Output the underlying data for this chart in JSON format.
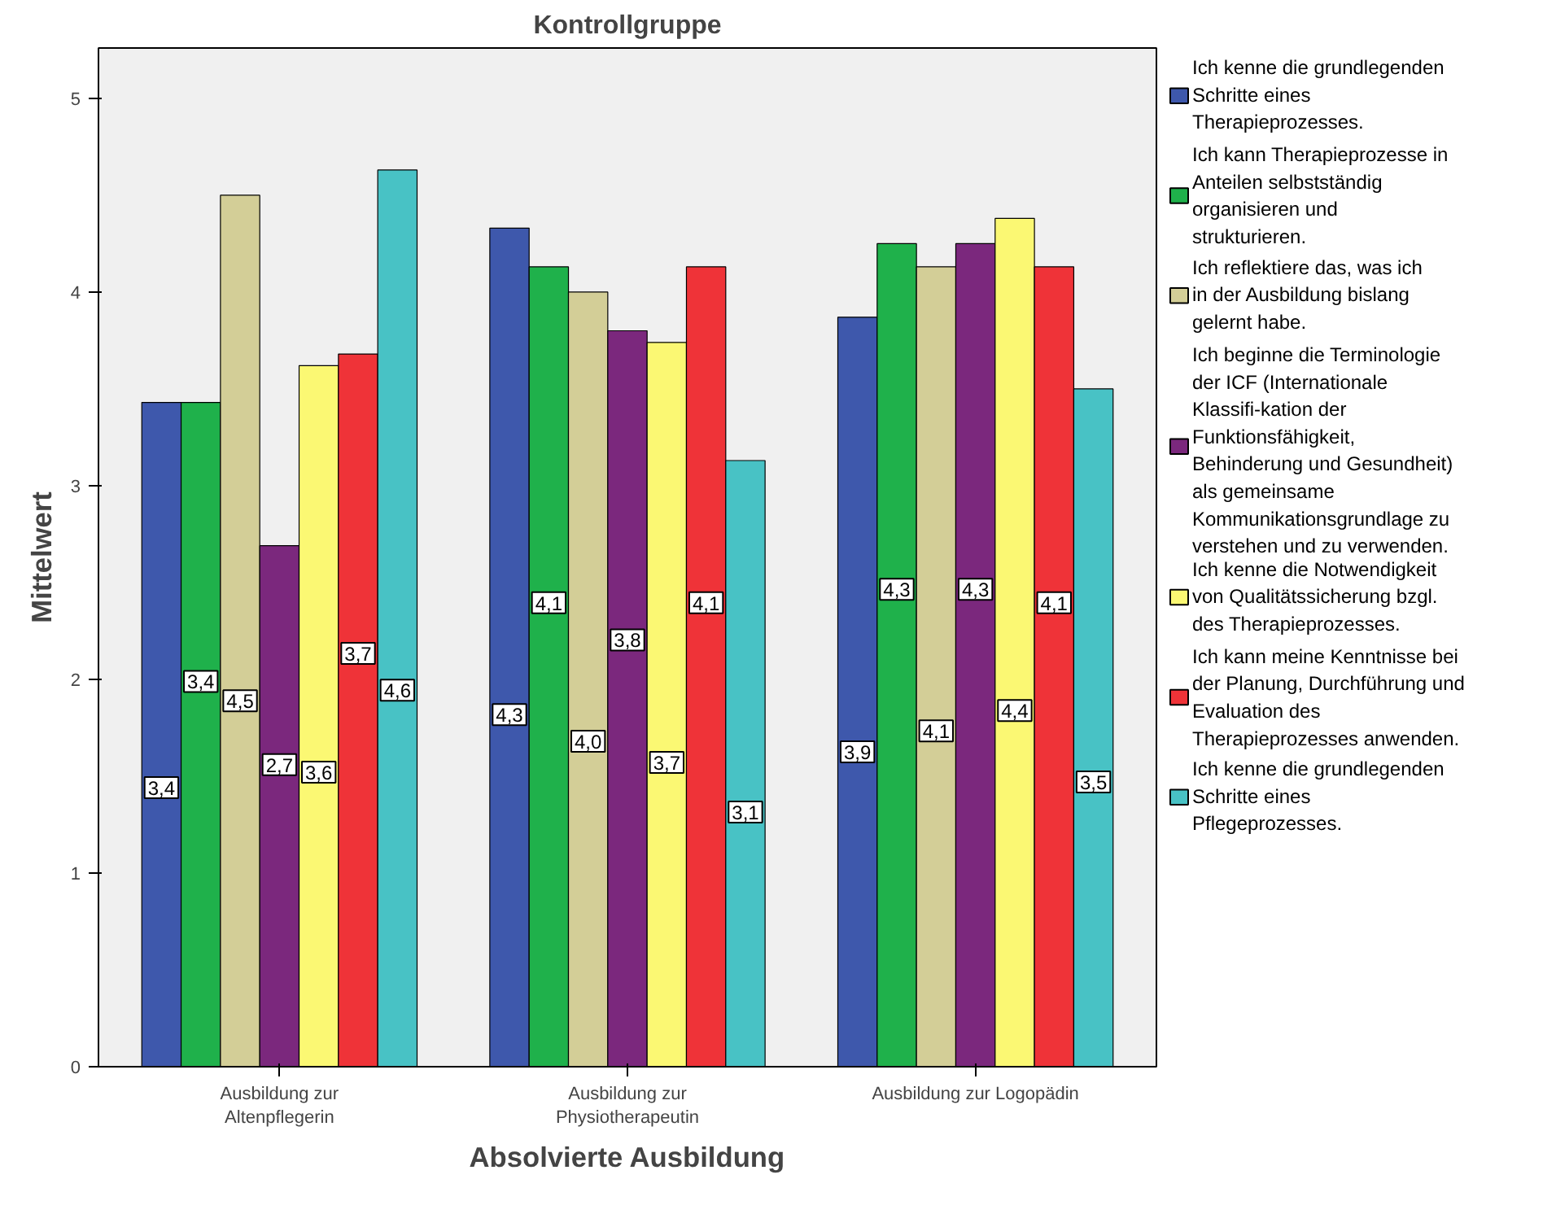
{
  "chart_data": {
    "type": "bar",
    "title": "Kontrollgruppe",
    "xlabel": "Absolvierte Ausbildung",
    "ylabel": "Mittelwert",
    "categories": [
      "Ausbildung zur Altenpflegerin",
      "Ausbildung zur Physiotherapeutin",
      "Ausbildung zur Logopädin"
    ],
    "ylim": [
      0,
      5.26
    ],
    "yticks": [
      0,
      1,
      2,
      3,
      4,
      5
    ],
    "grid": false,
    "legend": "right",
    "series": [
      {
        "name": "Ich kenne die grundlegenden Schritte eines Therapieprozesses.",
        "color": "#3e58ac",
        "values": [
          3.43,
          4.33,
          3.87
        ],
        "value_labels": [
          "3,4",
          "4,3",
          "3,9"
        ]
      },
      {
        "name": "Ich kann Therapieprozesse in Anteilen selbstständig organisieren und strukturieren.",
        "color": "#1fb14b",
        "values": [
          3.43,
          4.13,
          4.25
        ],
        "value_labels": [
          "3,4",
          "4,1",
          "4,3"
        ]
      },
      {
        "name": "Ich reflektiere das, was ich in der Ausbildung bislang gelernt habe.",
        "color": "#d3ce97",
        "values": [
          4.5,
          4.0,
          4.13
        ],
        "value_labels": [
          "4,5",
          "4,0",
          "4,1"
        ]
      },
      {
        "name": "Ich beginne die Terminologie der ICF (Internationale Klassifi-kation der Funktionsfähigkeit, Behinderung und Gesundheit) als gemeinsame Kommunikationsgrundlage zu verstehen und zu verwenden.",
        "color": "#7b287d",
        "values": [
          2.69,
          3.8,
          4.25
        ],
        "value_labels": [
          "2,7",
          "3,8",
          "4,3"
        ]
      },
      {
        "name": "Ich kenne die Notwendigkeit von Qualitätssicherung bzgl. des Therapieprozesses.",
        "color": "#fbf873",
        "values": [
          3.62,
          3.74,
          4.38
        ],
        "value_labels": [
          "3,6",
          "3,7",
          "4,4"
        ]
      },
      {
        "name": "Ich kann meine Kenntnisse bei der Planung, Durchführung und Evaluation des Therapieprozesses anwenden.",
        "color": "#ef3338",
        "values": [
          3.68,
          4.13,
          4.13
        ],
        "value_labels": [
          "3,7",
          "4,1",
          "4,1"
        ]
      },
      {
        "name": "Ich kenne die grundlegenden Schritte eines Pflegeprozesses.",
        "color": "#48c2c5",
        "values": [
          4.63,
          3.13,
          3.5
        ],
        "value_labels": [
          "4,6",
          "3,1",
          "3,5"
        ]
      }
    ]
  }
}
